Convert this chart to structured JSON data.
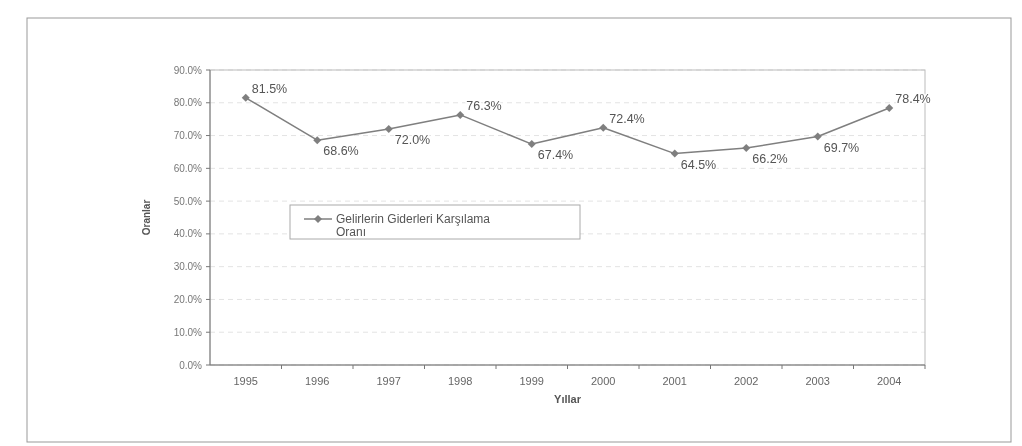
{
  "chart_data": {
    "type": "line",
    "xlabel": "Yıllar",
    "ylabel": "Oranlar",
    "categories": [
      "1995",
      "1996",
      "1997",
      "1998",
      "1999",
      "2000",
      "2001",
      "2002",
      "2003",
      "2004"
    ],
    "series": [
      {
        "name": "Gelirlerin Giderleri Karşılama Oranı",
        "color": "#7f7f7f",
        "values": [
          81.5,
          68.6,
          72.0,
          76.3,
          67.4,
          72.4,
          64.5,
          66.2,
          69.7,
          78.4
        ],
        "value_labels": [
          "81.5%",
          "68.6%",
          "72.0%",
          "76.3%",
          "67.4%",
          "72.4%",
          "64.5%",
          "66.2%",
          "69.7%",
          "78.4%"
        ]
      }
    ],
    "ylim": [
      0,
      90
    ],
    "yticks": [
      {
        "value": 0,
        "label": "0.0%"
      },
      {
        "value": 10,
        "label": "10.0%"
      },
      {
        "value": 20,
        "label": "20.0%"
      },
      {
        "value": 30,
        "label": "30.0%"
      },
      {
        "value": 40,
        "label": "40.0%"
      },
      {
        "value": 50,
        "label": "50.0%"
      },
      {
        "value": 60,
        "label": "60.0%"
      },
      {
        "value": 70,
        "label": "70.0%"
      },
      {
        "value": 80,
        "label": "80.0%"
      },
      {
        "value": 90,
        "label": "90.0%"
      }
    ],
    "grid": "y",
    "legend": "left",
    "marker": "diamond",
    "line_style": "solid"
  }
}
